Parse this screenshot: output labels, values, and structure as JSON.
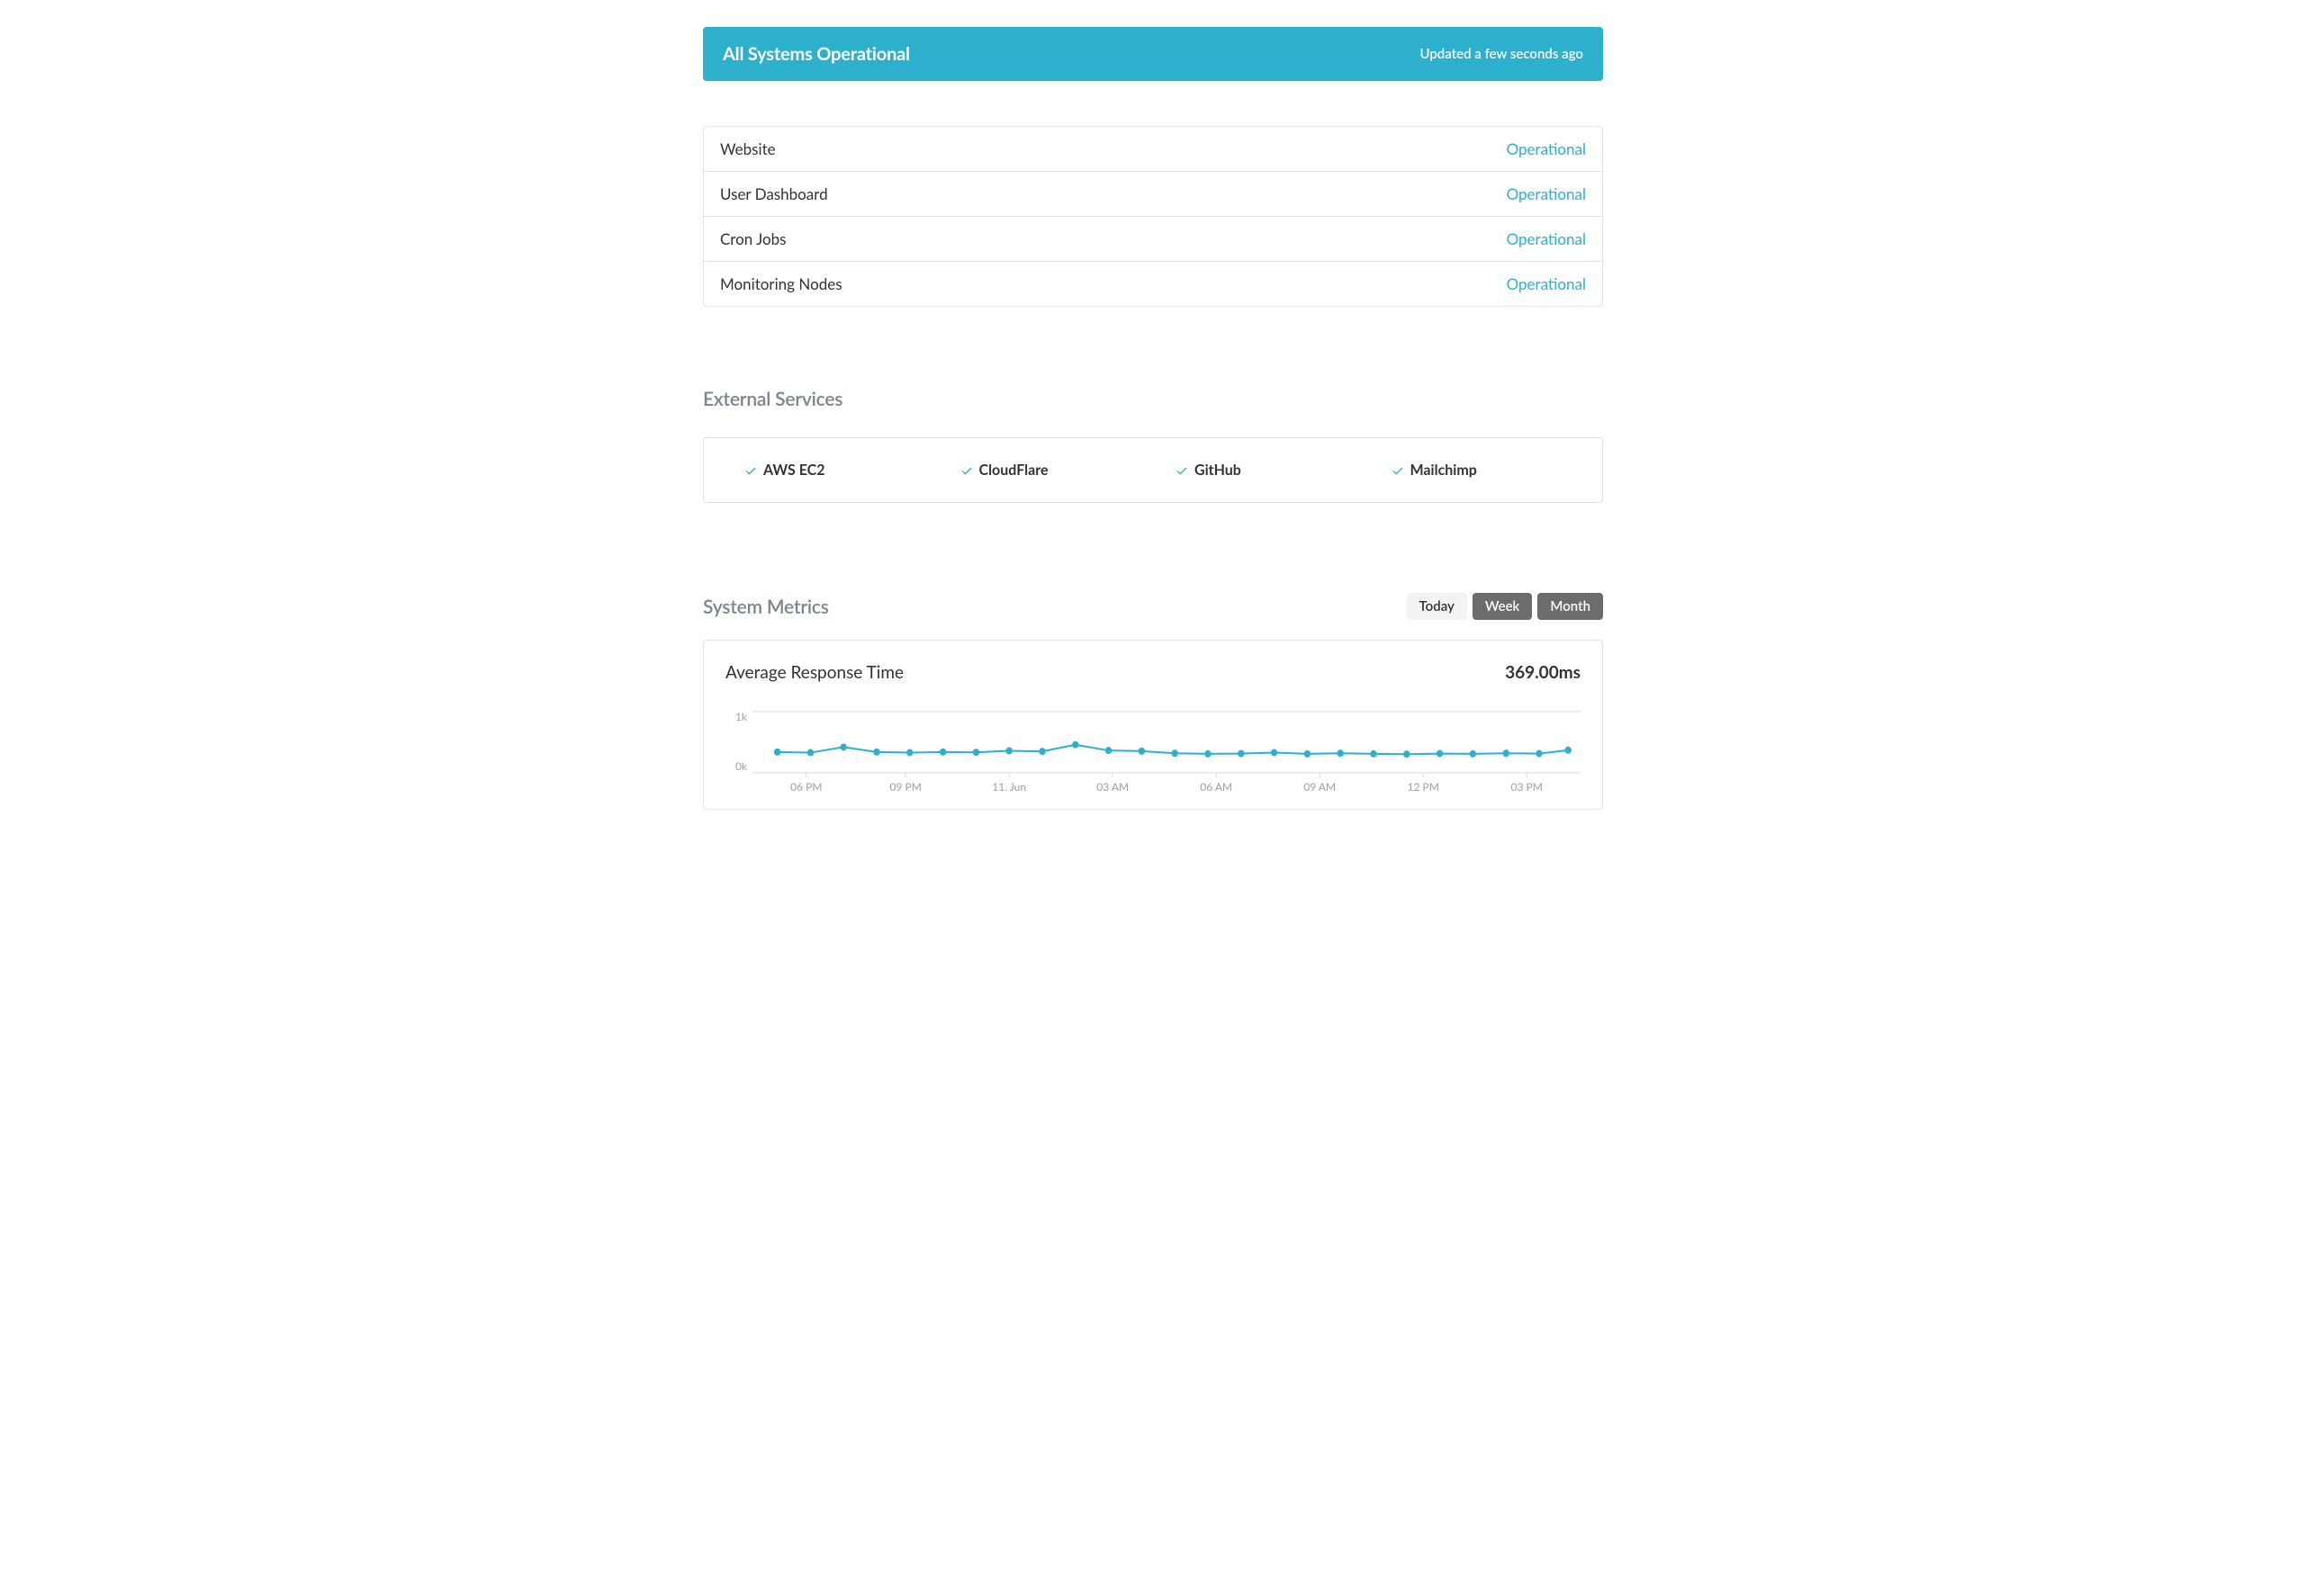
{
  "colors": {
    "accent": "#2db0cd",
    "text": "#333333",
    "muted": "#7a8590",
    "border": "#e2e2e2",
    "tab_inactive_bg": "#6c6c6c",
    "tab_active_bg": "#f3f3f3",
    "chart_line": "#2db0cd",
    "chart_marker": "#2db0cd",
    "grid": "#d9d9d9",
    "axis_label": "#9aa0a6"
  },
  "banner": {
    "title": "All Systems Operational",
    "updated": "Updated a few seconds ago"
  },
  "components": [
    {
      "name": "Website",
      "status": "Operational"
    },
    {
      "name": "User Dashboard",
      "status": "Operational"
    },
    {
      "name": "Cron Jobs",
      "status": "Operational"
    },
    {
      "name": "Monitoring Nodes",
      "status": "Operational"
    }
  ],
  "external": {
    "title": "External Services",
    "items": [
      {
        "label": "AWS EC2"
      },
      {
        "label": "CloudFlare"
      },
      {
        "label": "GitHub"
      },
      {
        "label": "Mailchimp"
      }
    ]
  },
  "metrics": {
    "title": "System Metrics",
    "ranges": [
      {
        "label": "Today",
        "active": true
      },
      {
        "label": "Week",
        "active": false
      },
      {
        "label": "Month",
        "active": false
      }
    ],
    "chart": {
      "type": "line",
      "title": "Average Response Time",
      "value_label": "369.00ms",
      "y_labels": [
        "1k",
        "0k"
      ],
      "ylim": [
        0,
        1000
      ],
      "line_color": "#2db0cd",
      "marker_color": "#2db0cd",
      "marker_radius": 4,
      "line_width": 2,
      "grid_color": "#d9d9d9",
      "background_color": "#ffffff",
      "x_ticks": [
        {
          "pos": 0.065,
          "label": "06 PM"
        },
        {
          "pos": 0.185,
          "label": "09 PM"
        },
        {
          "pos": 0.31,
          "label": "11. Jun"
        },
        {
          "pos": 0.435,
          "label": "03 AM"
        },
        {
          "pos": 0.56,
          "label": "06 AM"
        },
        {
          "pos": 0.685,
          "label": "09 AM"
        },
        {
          "pos": 0.81,
          "label": "12 PM"
        },
        {
          "pos": 0.935,
          "label": "03 PM"
        }
      ],
      "points": [
        {
          "x": 0.03,
          "y": 340
        },
        {
          "x": 0.07,
          "y": 330
        },
        {
          "x": 0.11,
          "y": 420
        },
        {
          "x": 0.15,
          "y": 340
        },
        {
          "x": 0.19,
          "y": 330
        },
        {
          "x": 0.23,
          "y": 340
        },
        {
          "x": 0.27,
          "y": 335
        },
        {
          "x": 0.31,
          "y": 360
        },
        {
          "x": 0.35,
          "y": 350
        },
        {
          "x": 0.39,
          "y": 460
        },
        {
          "x": 0.43,
          "y": 365
        },
        {
          "x": 0.47,
          "y": 355
        },
        {
          "x": 0.51,
          "y": 320
        },
        {
          "x": 0.55,
          "y": 310
        },
        {
          "x": 0.59,
          "y": 315
        },
        {
          "x": 0.63,
          "y": 330
        },
        {
          "x": 0.67,
          "y": 310
        },
        {
          "x": 0.71,
          "y": 320
        },
        {
          "x": 0.75,
          "y": 310
        },
        {
          "x": 0.79,
          "y": 305
        },
        {
          "x": 0.83,
          "y": 315
        },
        {
          "x": 0.87,
          "y": 310
        },
        {
          "x": 0.91,
          "y": 320
        },
        {
          "x": 0.95,
          "y": 315
        },
        {
          "x": 0.985,
          "y": 370
        }
      ]
    }
  }
}
